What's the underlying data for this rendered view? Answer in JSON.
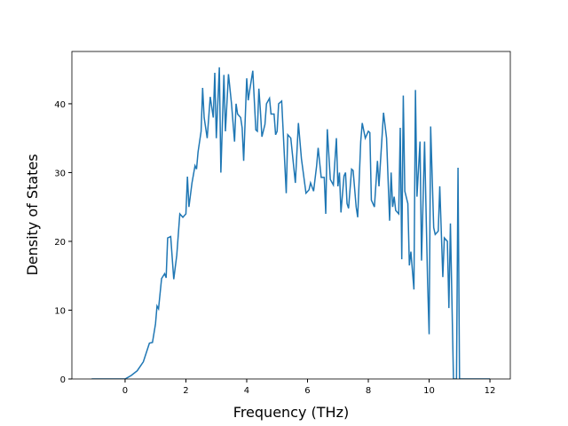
{
  "chart_data": {
    "type": "line",
    "xlabel": "Frequency (THz)",
    "ylabel": "Density of States",
    "x": [
      -1.1,
      0,
      0.2,
      0.4,
      0.6,
      0.8,
      0.9,
      1.0,
      1.05,
      1.1,
      1.2,
      1.3,
      1.35,
      1.4,
      1.5,
      1.6,
      1.7,
      1.8,
      1.9,
      2.0,
      2.05,
      2.1,
      2.2,
      2.3,
      2.35,
      2.4,
      2.5,
      2.55,
      2.6,
      2.7,
      2.8,
      2.9,
      2.95,
      3.0,
      3.1,
      3.15,
      3.25,
      3.3,
      3.4,
      3.5,
      3.6,
      3.65,
      3.7,
      3.8,
      3.85,
      3.9,
      4.0,
      4.05,
      4.1,
      4.2,
      4.3,
      4.35,
      4.4,
      4.45,
      4.5,
      4.6,
      4.65,
      4.75,
      4.8,
      4.9,
      4.95,
      5.0,
      5.05,
      5.15,
      5.3,
      5.35,
      5.45,
      5.6,
      5.7,
      5.8,
      5.95,
      6.05,
      6.1,
      6.2,
      6.3,
      6.35,
      6.45,
      6.55,
      6.6,
      6.65,
      6.75,
      6.85,
      6.95,
      7.0,
      7.05,
      7.1,
      7.2,
      7.25,
      7.3,
      7.35,
      7.45,
      7.5,
      7.6,
      7.65,
      7.75,
      7.8,
      7.9,
      8.0,
      8.05,
      8.1,
      8.2,
      8.3,
      8.35,
      8.5,
      8.6,
      8.7,
      8.75,
      8.8,
      8.85,
      8.9,
      9.0,
      9.05,
      9.1,
      9.15,
      9.2,
      9.3,
      9.35,
      9.4,
      9.5,
      9.55,
      9.6,
      9.7,
      9.75,
      9.85,
      9.95,
      10.0,
      10.05,
      10.15,
      10.2,
      10.3,
      10.35,
      10.45,
      10.5,
      10.6,
      10.65,
      10.7,
      10.8,
      10.9,
      10.95,
      11.0,
      12.0
    ],
    "series": [
      {
        "color": "#1f77b4",
        "values": [
          0,
          0,
          0.5,
          1.2,
          2.5,
          5.2,
          5.3,
          8,
          10.6,
          10.2,
          14.6,
          15.3,
          14.7,
          20.5,
          20.7,
          14.5,
          18,
          24,
          23.5,
          24,
          29.4,
          25,
          28.5,
          31,
          30.5,
          33,
          36,
          42.3,
          38,
          35,
          41,
          38,
          44.5,
          35,
          45.3,
          30,
          44.2,
          36,
          44.3,
          40,
          34.5,
          40,
          38.5,
          38,
          36.5,
          31.7,
          43.7,
          40.5,
          42,
          44.8,
          36.2,
          36,
          42.2,
          39,
          35.2,
          37,
          40,
          40.8,
          38.5,
          38.5,
          35.5,
          36,
          40,
          40.4,
          27,
          35.5,
          35,
          28.5,
          37.2,
          32,
          27,
          27.5,
          28.5,
          27.3,
          31,
          33.6,
          29.3,
          29.3,
          24,
          36.3,
          29,
          28.2,
          35,
          28,
          30,
          24.2,
          29.5,
          30,
          25.5,
          24.8,
          30.5,
          30.3,
          25,
          23.5,
          34.5,
          37.2,
          35,
          36,
          35.8,
          26,
          25,
          31.7,
          28,
          38.7,
          35,
          23,
          30,
          25,
          26.5,
          24.5,
          24,
          36.5,
          17.4,
          41.2,
          27.3,
          25.5,
          16.5,
          18.5,
          13,
          42,
          26.5,
          34.5,
          17.2,
          34.5,
          14,
          6.5,
          36.7,
          22,
          21,
          21.5,
          28,
          14.8,
          20.5,
          20,
          10.3,
          22.6,
          0,
          0,
          30.7,
          0,
          0
        ]
      }
    ],
    "xlim": [
      -1.75,
      12.67
    ],
    "ylim": [
      0,
      47.6
    ],
    "xticks": [
      0,
      2,
      4,
      6,
      8,
      10,
      12
    ],
    "yticks": [
      0,
      10,
      20,
      30,
      40
    ]
  }
}
